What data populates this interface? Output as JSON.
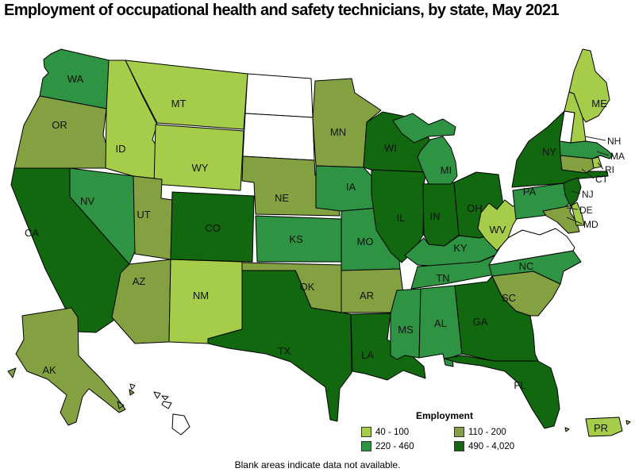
{
  "title": "Employment of occupational health and safety technicians, by state, May 2021",
  "footnote": "Blank areas indicate data not available.",
  "legend": {
    "title": "Employment"
  },
  "chart_data": {
    "type": "choropleth",
    "title": "Employment of occupational health and safety technicians, by state, May 2021",
    "legend_title": "Employment",
    "legend_position": "bottom-right",
    "no_data_note": "Blank areas indicate data not available.",
    "no_data_color": "#ffffff",
    "bins": [
      {
        "range": "40 - 100",
        "color": "#a5cd4a"
      },
      {
        "range": "110 - 200",
        "color": "#84a142"
      },
      {
        "range": "220 - 460",
        "color": "#2e9342"
      },
      {
        "range": "490 - 4,020",
        "color": "#11680f"
      }
    ],
    "states": [
      {
        "abbr": "WA",
        "bin": 2
      },
      {
        "abbr": "OR",
        "bin": 1
      },
      {
        "abbr": "CA",
        "bin": 3
      },
      {
        "abbr": "ID",
        "bin": 0
      },
      {
        "abbr": "NV",
        "bin": 2
      },
      {
        "abbr": "MT",
        "bin": 0
      },
      {
        "abbr": "WY",
        "bin": 0
      },
      {
        "abbr": "UT",
        "bin": 1
      },
      {
        "abbr": "CO",
        "bin": 3
      },
      {
        "abbr": "AZ",
        "bin": 1
      },
      {
        "abbr": "NM",
        "bin": 0
      },
      {
        "abbr": "ND",
        "bin": null
      },
      {
        "abbr": "SD",
        "bin": null
      },
      {
        "abbr": "NE",
        "bin": 1
      },
      {
        "abbr": "KS",
        "bin": 2
      },
      {
        "abbr": "OK",
        "bin": 1
      },
      {
        "abbr": "TX",
        "bin": 3
      },
      {
        "abbr": "MN",
        "bin": 1
      },
      {
        "abbr": "IA",
        "bin": 2
      },
      {
        "abbr": "MO",
        "bin": 2
      },
      {
        "abbr": "AR",
        "bin": 1
      },
      {
        "abbr": "LA",
        "bin": 3
      },
      {
        "abbr": "WI",
        "bin": 3
      },
      {
        "abbr": "IL",
        "bin": 3
      },
      {
        "abbr": "IN",
        "bin": 3
      },
      {
        "abbr": "OH",
        "bin": 3
      },
      {
        "abbr": "MI",
        "bin": 2
      },
      {
        "abbr": "KY",
        "bin": 2
      },
      {
        "abbr": "TN",
        "bin": 2
      },
      {
        "abbr": "MS",
        "bin": 2
      },
      {
        "abbr": "AL",
        "bin": 2
      },
      {
        "abbr": "GA",
        "bin": 3
      },
      {
        "abbr": "FL",
        "bin": 3
      },
      {
        "abbr": "SC",
        "bin": 1
      },
      {
        "abbr": "NC",
        "bin": 2
      },
      {
        "abbr": "VA",
        "bin": null
      },
      {
        "abbr": "WV",
        "bin": 0
      },
      {
        "abbr": "PA",
        "bin": 2
      },
      {
        "abbr": "NY",
        "bin": 3
      },
      {
        "abbr": "NJ",
        "bin": 3
      },
      {
        "abbr": "MD",
        "bin": 1
      },
      {
        "abbr": "DE",
        "bin": 0
      },
      {
        "abbr": "VT",
        "bin": null
      },
      {
        "abbr": "NH",
        "bin": 0
      },
      {
        "abbr": "ME",
        "bin": 0
      },
      {
        "abbr": "MA",
        "bin": 2
      },
      {
        "abbr": "CT",
        "bin": 1
      },
      {
        "abbr": "RI",
        "bin": 0
      },
      {
        "abbr": "AK",
        "bin": 1
      },
      {
        "abbr": "HI",
        "bin": null
      },
      {
        "abbr": "PR",
        "bin": 0
      }
    ]
  }
}
